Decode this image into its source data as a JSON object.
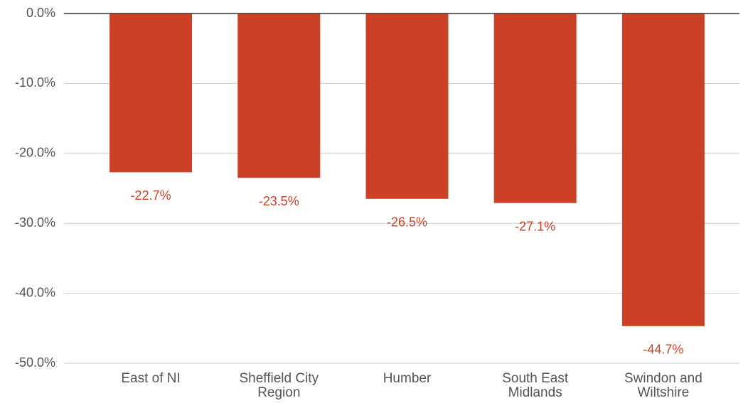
{
  "chart_data": {
    "type": "bar",
    "categories": [
      "East of NI",
      "Sheffield City Region",
      "Humber",
      "South East Midlands",
      "Swindon and Wiltshire"
    ],
    "values": [
      -22.7,
      -23.5,
      -26.5,
      -27.1,
      -44.7
    ],
    "value_labels": [
      "-22.7%",
      "-23.5%",
      "-26.5%",
      "-27.1%",
      "-44.7%"
    ],
    "color": "#cc4125",
    "ylim": [
      -50,
      0
    ],
    "yticks": [
      {
        "value": 0,
        "label": "0.0%"
      },
      {
        "value": -10,
        "label": "-10.0%"
      },
      {
        "value": -20,
        "label": "-20.0%"
      },
      {
        "value": -30,
        "label": "-30.0%"
      },
      {
        "value": -40,
        "label": "-40.0%"
      },
      {
        "value": -50,
        "label": "-50.0%"
      }
    ],
    "grid": true
  }
}
